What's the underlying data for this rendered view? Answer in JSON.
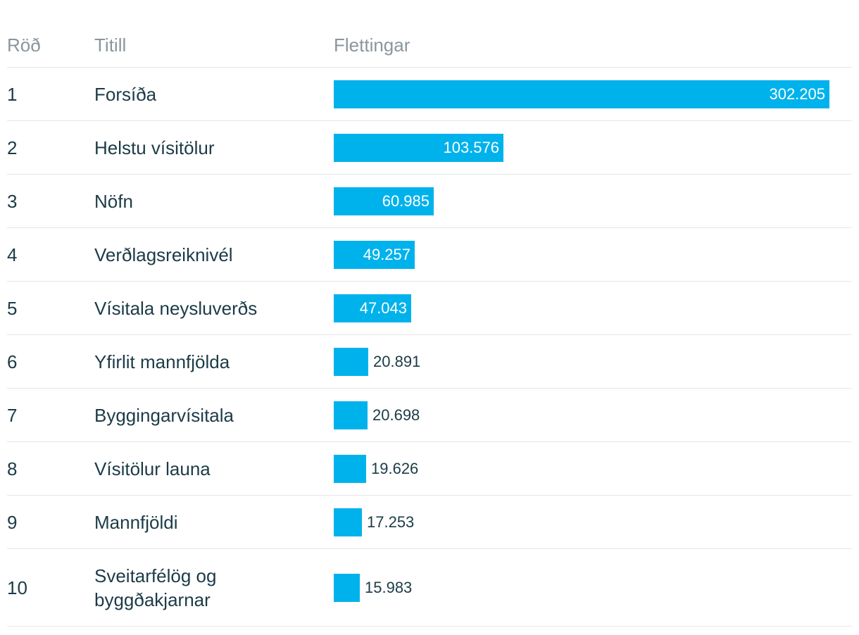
{
  "table": {
    "headers": {
      "rank": "Röð",
      "title": "Titill",
      "views": "Flettingar"
    }
  },
  "chart_data": {
    "type": "bar",
    "orientation": "horizontal",
    "categories": [
      "Forsíða",
      "Helstu vísitölur",
      "Nöfn",
      "Verðlagsreiknivél",
      "Vísitala neysluverðs",
      "Yfirlit mannfjölda",
      "Byggingarvísitala",
      "Vísitölur launa",
      "Mannfjöldi",
      "Sveitarfélög og byggðakjarnar"
    ],
    "ranks": [
      "1",
      "2",
      "3",
      "4",
      "5",
      "6",
      "7",
      "8",
      "9",
      "10"
    ],
    "values": [
      302205,
      103576,
      60985,
      49257,
      47043,
      20891,
      20698,
      19626,
      17253,
      15983
    ],
    "value_labels": [
      "302.205",
      "103.576",
      "60.985",
      "49.257",
      "47.043",
      "20.891",
      "20.698",
      "19.626",
      "17.253",
      "15.983"
    ],
    "xlim": [
      0,
      302205
    ],
    "bar_color": "#00b2ec",
    "grid": false
  }
}
